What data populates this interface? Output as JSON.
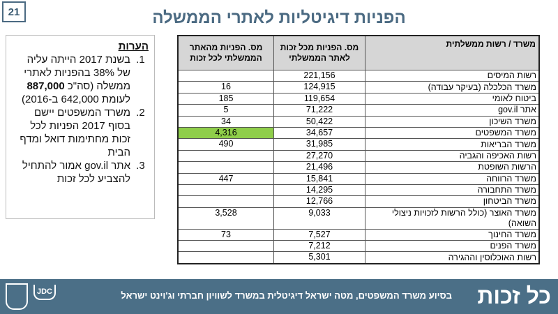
{
  "page_number": "21",
  "title": "הפניות דיגיטליות לאתרי הממשלה",
  "notes": {
    "heading": "הערות",
    "items": [
      {
        "pre": "בשנת 2017 הייתה עליה של 38% בהפניות לאתרי ממשלה (סה\"כ ",
        "bold": "887,000",
        "post": " לעומת 642,000 ב-2016)"
      },
      {
        "pre": "משרד המשפטים יישם בסוף 2017 הפניות לכל זכות מחתימות דואל ומדף הבית",
        "bold": "",
        "post": ""
      },
      {
        "pre": "אתר gov.il אמור להתחיל להצביע לכל זכות",
        "bold": "",
        "post": ""
      }
    ]
  },
  "table": {
    "headers": [
      "משרד / רשות ממשלתית",
      "מס. הפניות מכל זכות לאתר הממשלתי",
      "מס. הפניות מהאתר הממשלתי לכל זכות"
    ],
    "rows": [
      [
        "רשות המיסים",
        "221,156",
        ""
      ],
      [
        "משרד הכלכלה (בעיקר עבודה)",
        "124,915",
        "16"
      ],
      [
        "ביטוח לאומי",
        "119,654",
        "185"
      ],
      [
        "אתר gov.il",
        "71,222",
        "5"
      ],
      [
        "משרד  השיכון",
        "50,422",
        "34"
      ],
      [
        "משרד המשפטים",
        "34,657",
        "4,316"
      ],
      [
        "משרד הבריאות",
        "31,985",
        "490"
      ],
      [
        "רשות האכיפה והגביה",
        "27,270",
        ""
      ],
      [
        "הרשות השופטת",
        "21,496",
        ""
      ],
      [
        "משרד הרווחה",
        "15,841",
        "447"
      ],
      [
        "משרד התחבורה",
        "14,295",
        ""
      ],
      [
        "משרד הביטחון",
        "12,766",
        ""
      ],
      [
        "משרד האוצר (כולל הרשות לזכויות ניצולי השואה)",
        "9,033",
        "3,528"
      ],
      [
        "משרד החינוך",
        "7,527",
        "73"
      ],
      [
        "משרד  הפנים",
        "7,212",
        ""
      ],
      [
        "רשות האוכלוסין וההגירה",
        "5,301",
        ""
      ]
    ],
    "highlight_color": "#8fce4a"
  },
  "footer": {
    "logo": "כל זכות",
    "text": "בסיוע משרד המשפטים, מטה ישראל דיגיטלית במשרד לשוויון חברתי וג'וינט ישראל",
    "jdc": "JDC"
  }
}
